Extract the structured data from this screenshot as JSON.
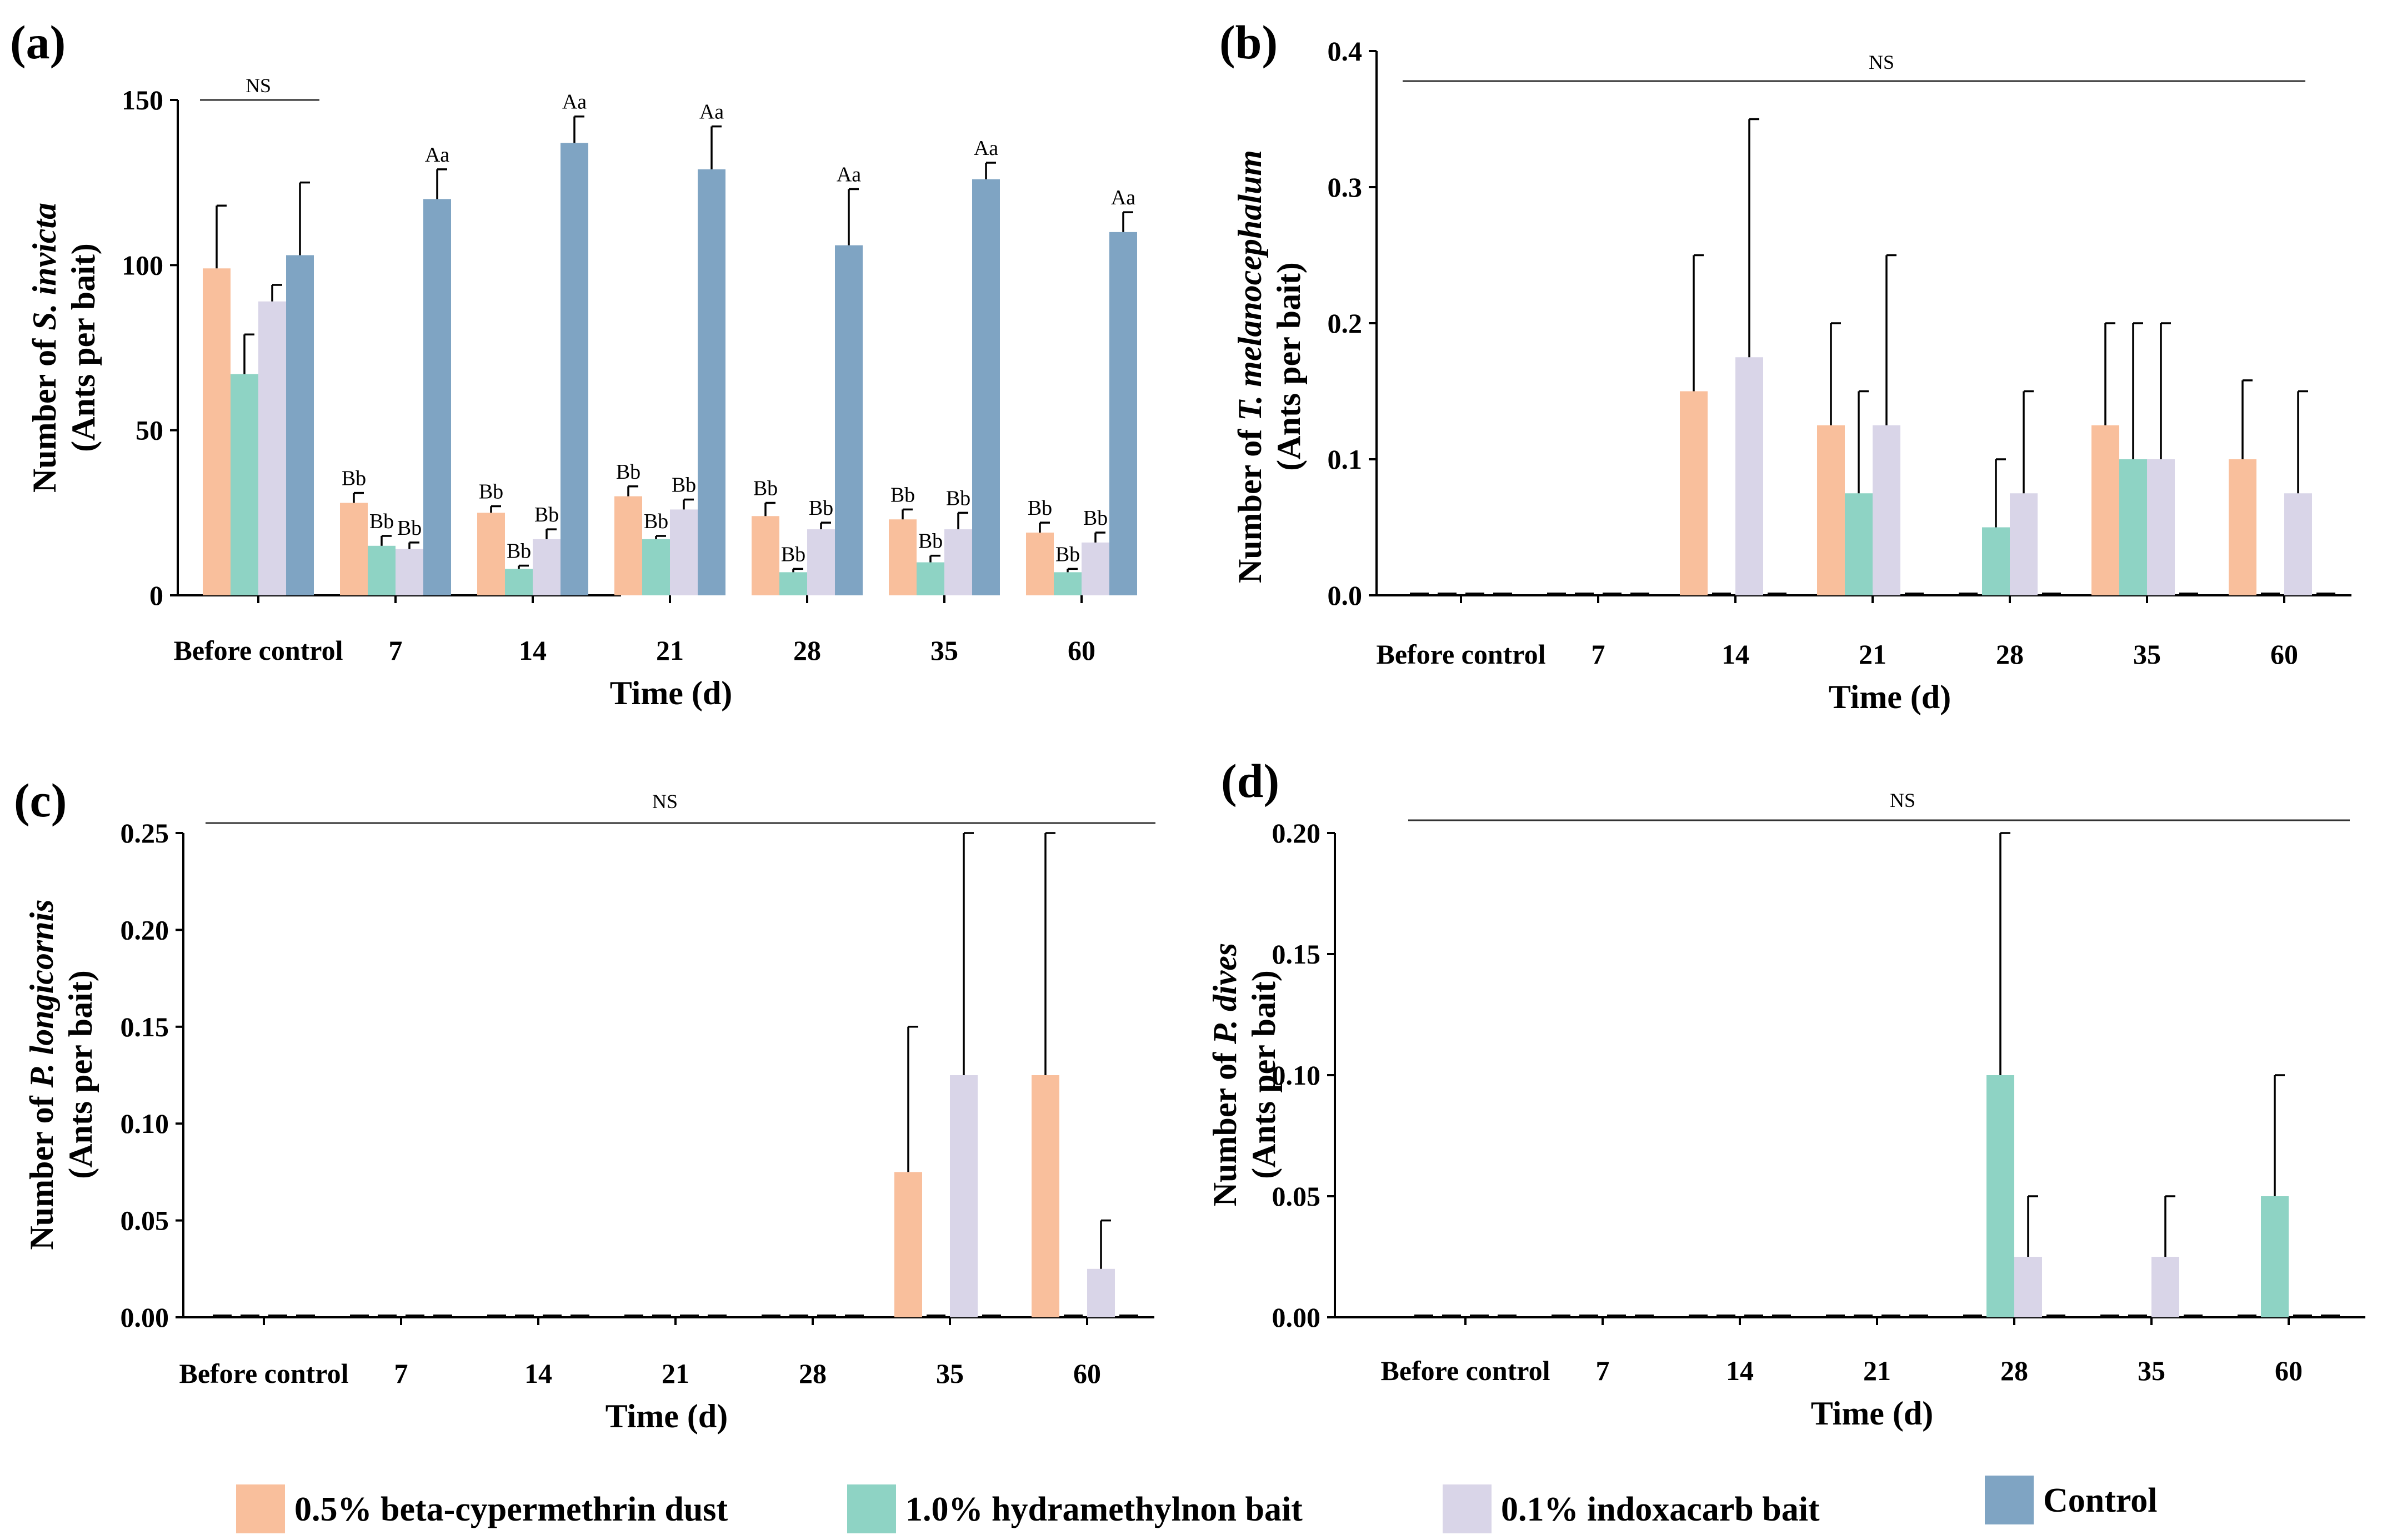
{
  "legend": [
    {
      "label": "0.5%  beta-cypermethrin dust",
      "color": "#F9BF9C"
    },
    {
      "label": "1.0% hydramethylnon bait",
      "color": "#8ED3C4"
    },
    {
      "label": "0.1% indoxacarb bait",
      "color": "#D9D5E8"
    },
    {
      "label": "Control",
      "color": "#7FA4C3"
    }
  ],
  "chart_data": [
    {
      "type": "bar",
      "panel": "(a)",
      "ylabel_prefix": "Number of ",
      "ylabel_species": "S. invicta",
      "ylabel_unit": "(Ants per bait)",
      "xlabel": "Time (d)",
      "categories": [
        "Before control",
        "7",
        "14",
        "21",
        "28",
        "35",
        "60"
      ],
      "ylim": [
        0,
        150
      ],
      "yticks": [
        "0",
        "50",
        "100",
        "150"
      ],
      "ytick_values": [
        0,
        50,
        100,
        150
      ],
      "ns_label": "NS",
      "series": [
        {
          "name": "0.5%  beta-cypermethrin dust",
          "values": [
            99,
            28,
            25,
            30,
            24,
            23,
            19
          ],
          "errors": [
            19,
            3,
            2,
            3,
            4,
            3,
            3
          ],
          "labels": [
            "",
            "Bb",
            "Bb",
            "Bb",
            "Bb",
            "Bb",
            "Bb"
          ]
        },
        {
          "name": "1.0% hydramethylnon bait",
          "values": [
            67,
            15,
            8,
            17,
            7,
            10,
            7
          ],
          "errors": [
            12,
            3,
            1,
            1,
            1,
            2,
            1
          ],
          "labels": [
            "",
            "Bb",
            "Bb",
            "Bb",
            "Bb",
            "Bb",
            "Bb"
          ]
        },
        {
          "name": "0.1% indoxacarb bait",
          "values": [
            89,
            14,
            17,
            26,
            20,
            20,
            16
          ],
          "errors": [
            5,
            2,
            3,
            3,
            2,
            5,
            3
          ],
          "labels": [
            "",
            "Bb",
            "Bb",
            "Bb",
            "Bb",
            "Bb",
            "Bb"
          ]
        },
        {
          "name": "Control",
          "values": [
            103,
            120,
            137,
            129,
            106,
            126,
            110
          ],
          "errors": [
            22,
            9,
            8,
            13,
            17,
            5,
            6
          ],
          "labels": [
            "",
            "Aa",
            "Aa",
            "Aa",
            "Aa",
            "Aa",
            "Aa"
          ]
        }
      ]
    },
    {
      "type": "bar",
      "panel": "(b)",
      "ylabel_prefix": "Number of ",
      "ylabel_species": "T. melanocephalum",
      "ylabel_unit": "(Ants per bait)",
      "xlabel": "Time (d)",
      "categories": [
        "Before control",
        "7",
        "14",
        "21",
        "28",
        "35",
        "60"
      ],
      "ylim": [
        0,
        0.4
      ],
      "yticks": [
        "0.0",
        "0.1",
        "0.2",
        "0.3",
        "0.4"
      ],
      "ytick_values": [
        0,
        0.1,
        0.2,
        0.3,
        0.4
      ],
      "ns_label": "NS",
      "series": [
        {
          "name": "0.5%  beta-cypermethrin dust",
          "values": [
            0,
            0,
            0.15,
            0.125,
            0,
            0.125,
            0.1
          ],
          "errors": [
            0,
            0,
            0.1,
            0.075,
            0,
            0.075,
            0.058
          ]
        },
        {
          "name": "1.0% hydramethylnon bait",
          "values": [
            0,
            0,
            0,
            0.075,
            0.05,
            0.1,
            0
          ],
          "errors": [
            0,
            0,
            0,
            0.075,
            0.05,
            0.1,
            0
          ]
        },
        {
          "name": "0.1% indoxacarb bait",
          "values": [
            0,
            0,
            0.175,
            0.125,
            0.075,
            0.1,
            0.075
          ],
          "errors": [
            0,
            0,
            0.175,
            0.125,
            0.075,
            0.1,
            0.075
          ]
        },
        {
          "name": "Control",
          "values": [
            0,
            0,
            0,
            0,
            0,
            0,
            0
          ],
          "errors": [
            0,
            0,
            0,
            0,
            0,
            0,
            0
          ]
        }
      ]
    },
    {
      "type": "bar",
      "panel": "(c)",
      "ylabel_prefix": "Number of ",
      "ylabel_species": "P. longicornis",
      "ylabel_unit": "(Ants per bait)",
      "xlabel": "Time (d)",
      "categories": [
        "Before control",
        "7",
        "14",
        "21",
        "28",
        "35",
        "60"
      ],
      "ylim": [
        0,
        0.25
      ],
      "yticks": [
        "0.00",
        "0.05",
        "0.10",
        "0.15",
        "0.20",
        "0.25"
      ],
      "ytick_values": [
        0,
        0.05,
        0.1,
        0.15,
        0.2,
        0.25
      ],
      "ns_label": "NS",
      "series": [
        {
          "name": "0.5%  beta-cypermethrin dust",
          "values": [
            0,
            0,
            0,
            0,
            0,
            0.075,
            0.125
          ],
          "errors": [
            0,
            0,
            0,
            0,
            0,
            0.075,
            0.125
          ]
        },
        {
          "name": "1.0% hydramethylnon bait",
          "values": [
            0,
            0,
            0,
            0,
            0,
            0,
            0
          ],
          "errors": [
            0,
            0,
            0,
            0,
            0,
            0,
            0
          ]
        },
        {
          "name": "0.1% indoxacarb bait",
          "values": [
            0,
            0,
            0,
            0,
            0,
            0.125,
            0.025
          ],
          "errors": [
            0,
            0,
            0,
            0,
            0,
            0.125,
            0.025
          ]
        },
        {
          "name": "Control",
          "values": [
            0,
            0,
            0,
            0,
            0,
            0,
            0
          ],
          "errors": [
            0,
            0,
            0,
            0,
            0,
            0,
            0
          ]
        }
      ]
    },
    {
      "type": "bar",
      "panel": "(d)",
      "ylabel_prefix": "Number of ",
      "ylabel_species": "P. dives",
      "ylabel_unit": "(Ants per bait)",
      "xlabel": "Time (d)",
      "categories": [
        "Before control",
        "7",
        "14",
        "21",
        "28",
        "35",
        "60"
      ],
      "ylim": [
        0,
        0.2
      ],
      "yticks": [
        "0.00",
        "0.05",
        "0.10",
        "0.15",
        "0.20"
      ],
      "ytick_values": [
        0,
        0.05,
        0.1,
        0.15,
        0.2
      ],
      "ns_label": "NS",
      "series": [
        {
          "name": "0.5%  beta-cypermethrin dust",
          "values": [
            0,
            0,
            0,
            0,
            0,
            0,
            0
          ],
          "errors": [
            0,
            0,
            0,
            0,
            0,
            0,
            0
          ]
        },
        {
          "name": "1.0% hydramethylnon bait",
          "values": [
            0,
            0,
            0,
            0,
            0.1,
            0,
            0.05
          ],
          "errors": [
            0,
            0,
            0,
            0,
            0.1,
            0,
            0.05
          ]
        },
        {
          "name": "0.1% indoxacarb bait",
          "values": [
            0,
            0,
            0,
            0,
            0.025,
            0.025,
            0
          ],
          "errors": [
            0,
            0,
            0,
            0,
            0.025,
            0.025,
            0
          ]
        },
        {
          "name": "Control",
          "values": [
            0,
            0,
            0,
            0,
            0,
            0,
            0
          ],
          "errors": [
            0,
            0,
            0,
            0,
            0,
            0,
            0
          ]
        }
      ]
    }
  ]
}
